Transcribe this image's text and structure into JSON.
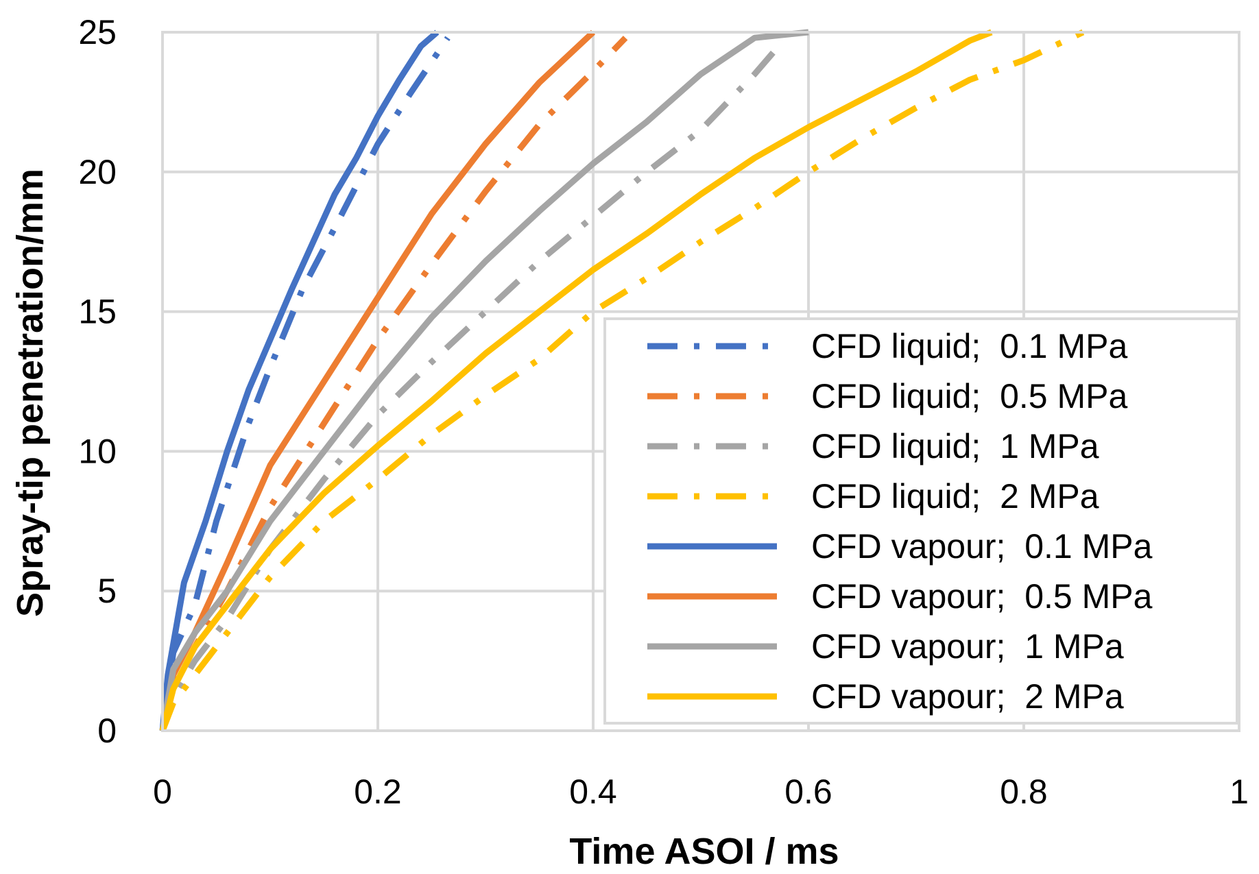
{
  "chart_data": {
    "type": "line",
    "title": "",
    "xlabel": "Time ASOI / ms",
    "ylabel": "Spray-tip penetration/mm",
    "xlim": [
      0,
      1
    ],
    "ylim": [
      0,
      25
    ],
    "x_ticks": [
      0,
      0.2,
      0.4,
      0.6,
      0.8,
      1
    ],
    "x_tick_labels": [
      "0",
      "0.2",
      "0.4",
      "0.6",
      "0.8",
      "1"
    ],
    "y_ticks": [
      0,
      5,
      10,
      15,
      20,
      25
    ],
    "y_tick_labels": [
      "0",
      "5",
      "10",
      "15",
      "20",
      "25"
    ],
    "grid": true,
    "legend_position": "bottom-right",
    "series": [
      {
        "name": "CFD liquid;  0.1 MPa",
        "color": "#4472C4",
        "style": "dashdot",
        "x": [
          0,
          0.01,
          0.03,
          0.05,
          0.08,
          0.1,
          0.13,
          0.16,
          0.2,
          0.23,
          0.265
        ],
        "y": [
          0,
          2.8,
          4.5,
          7.5,
          11.0,
          13.0,
          15.8,
          18.0,
          21.0,
          22.8,
          24.8
        ]
      },
      {
        "name": "CFD liquid;  0.5 MPa",
        "color": "#ED7D31",
        "style": "dashdot",
        "x": [
          0,
          0.01,
          0.03,
          0.06,
          0.1,
          0.15,
          0.2,
          0.25,
          0.3,
          0.35,
          0.4,
          0.43
        ],
        "y": [
          0,
          1.5,
          3.0,
          5.0,
          8.0,
          11.0,
          14.0,
          16.7,
          19.3,
          21.7,
          23.6,
          24.8
        ]
      },
      {
        "name": "CFD liquid;  1 MPa",
        "color": "#A5A5A5",
        "style": "dashdot",
        "x": [
          0,
          0.01,
          0.03,
          0.06,
          0.1,
          0.15,
          0.2,
          0.25,
          0.3,
          0.35,
          0.4,
          0.45,
          0.5,
          0.55,
          0.57
        ],
        "y": [
          0,
          1.2,
          2.5,
          4.0,
          6.5,
          9.0,
          11.3,
          13.2,
          15.0,
          16.8,
          18.4,
          20.0,
          21.5,
          23.5,
          24.4
        ]
      },
      {
        "name": "CFD liquid;  2 MPa",
        "color": "#FFC000",
        "style": "dashdot",
        "x": [
          0,
          0.01,
          0.03,
          0.06,
          0.1,
          0.15,
          0.2,
          0.25,
          0.3,
          0.35,
          0.4,
          0.45,
          0.5,
          0.55,
          0.6,
          0.65,
          0.7,
          0.75,
          0.8,
          0.855
        ],
        "y": [
          0,
          1.0,
          2.0,
          3.5,
          5.5,
          7.5,
          9.0,
          10.6,
          12.0,
          13.3,
          15.0,
          16.2,
          17.5,
          18.7,
          20.0,
          21.2,
          22.3,
          23.3,
          24.0,
          25.0
        ]
      },
      {
        "name": "CFD vapour;  0.1 MPa",
        "color": "#4472C4",
        "style": "solid",
        "x": [
          0,
          0.005,
          0.02,
          0.04,
          0.06,
          0.08,
          0.1,
          0.12,
          0.14,
          0.16,
          0.18,
          0.2,
          0.22,
          0.24,
          0.255
        ],
        "y": [
          0,
          2.0,
          5.3,
          7.5,
          10.0,
          12.2,
          14.0,
          15.8,
          17.5,
          19.2,
          20.5,
          22.0,
          23.3,
          24.5,
          25.0
        ]
      },
      {
        "name": "CFD vapour;  0.5 MPa",
        "color": "#ED7D31",
        "style": "solid",
        "x": [
          0,
          0.01,
          0.03,
          0.06,
          0.1,
          0.15,
          0.2,
          0.25,
          0.3,
          0.35,
          0.4
        ],
        "y": [
          0,
          2.0,
          3.5,
          6.0,
          9.5,
          12.5,
          15.5,
          18.5,
          21.0,
          23.2,
          25.0
        ]
      },
      {
        "name": "CFD vapour;  1 MPa",
        "color": "#A5A5A5",
        "style": "solid",
        "x": [
          0,
          0.01,
          0.03,
          0.06,
          0.1,
          0.15,
          0.2,
          0.25,
          0.3,
          0.35,
          0.4,
          0.45,
          0.5,
          0.55,
          0.6
        ],
        "y": [
          0,
          2.2,
          3.5,
          5.0,
          7.5,
          10.0,
          12.5,
          14.8,
          16.8,
          18.6,
          20.3,
          21.8,
          23.5,
          24.8,
          25.0
        ]
      },
      {
        "name": "CFD vapour;  2 MPa",
        "color": "#FFC000",
        "style": "solid",
        "x": [
          0,
          0.01,
          0.03,
          0.06,
          0.1,
          0.15,
          0.2,
          0.25,
          0.3,
          0.35,
          0.4,
          0.45,
          0.5,
          0.55,
          0.6,
          0.65,
          0.7,
          0.75,
          0.77
        ],
        "y": [
          0,
          1.5,
          3.0,
          4.5,
          6.5,
          8.5,
          10.2,
          11.8,
          13.5,
          15.0,
          16.5,
          17.8,
          19.2,
          20.5,
          21.6,
          22.6,
          23.6,
          24.7,
          25.0
        ]
      }
    ]
  }
}
